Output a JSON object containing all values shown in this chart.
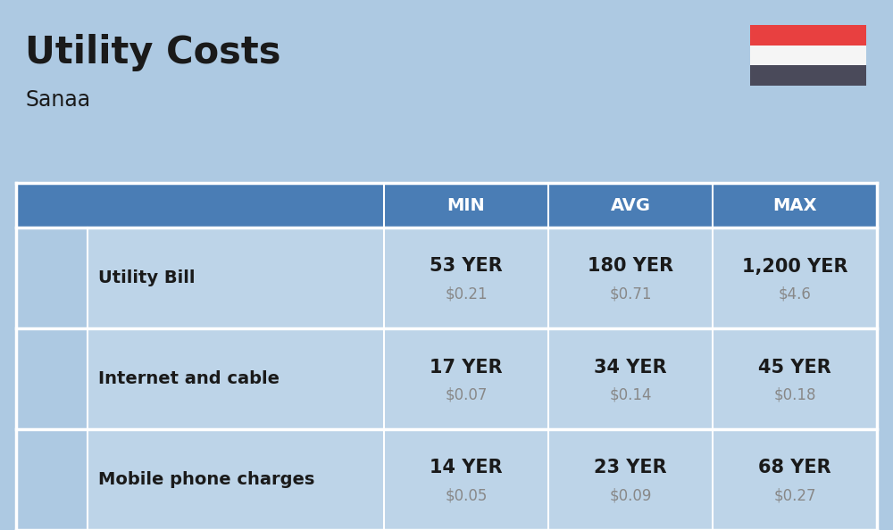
{
  "title": "Utility Costs",
  "subtitle": "Sanaa",
  "background_color": "#adc9e2",
  "header_color": "#4a7db5",
  "header_text_color": "#ffffff",
  "row_color": "#bdd4e8",
  "icon_col_color": "#adc9e2",
  "separator_color": "#ffffff",
  "rows": [
    {
      "label": "Utility Bill",
      "min_yer": "53 YER",
      "min_usd": "$0.21",
      "avg_yer": "180 YER",
      "avg_usd": "$0.71",
      "max_yer": "1,200 YER",
      "max_usd": "$4.6"
    },
    {
      "label": "Internet and cable",
      "min_yer": "17 YER",
      "min_usd": "$0.07",
      "avg_yer": "34 YER",
      "avg_usd": "$0.14",
      "max_yer": "45 YER",
      "max_usd": "$0.18"
    },
    {
      "label": "Mobile phone charges",
      "min_yer": "14 YER",
      "min_usd": "$0.05",
      "avg_yer": "23 YER",
      "avg_usd": "$0.09",
      "max_yer": "68 YER",
      "max_usd": "$0.27"
    }
  ],
  "flag_red": "#e84040",
  "flag_white": "#f5f5f5",
  "flag_dark": "#4a4a5a",
  "title_fontsize": 30,
  "subtitle_fontsize": 17,
  "header_fontsize": 14,
  "label_fontsize": 14,
  "value_fontsize": 15,
  "usd_fontsize": 12,
  "text_color_dark": "#1a1a1a",
  "text_color_usd": "#888888"
}
